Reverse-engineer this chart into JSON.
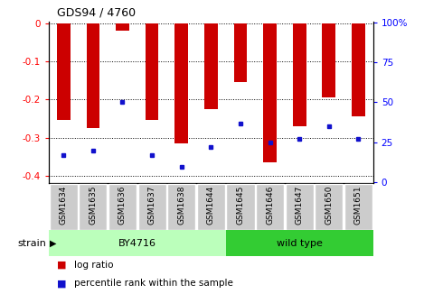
{
  "title": "GDS94 / 4760",
  "categories": [
    "GSM1634",
    "GSM1635",
    "GSM1636",
    "GSM1637",
    "GSM1638",
    "GSM1644",
    "GSM1645",
    "GSM1646",
    "GSM1647",
    "GSM1650",
    "GSM1651"
  ],
  "log_ratios": [
    -0.255,
    -0.275,
    -0.02,
    -0.255,
    -0.315,
    -0.225,
    -0.155,
    -0.365,
    -0.27,
    -0.195,
    -0.245
  ],
  "percentiles": [
    17,
    20,
    50,
    17,
    10,
    22,
    37,
    25,
    27,
    35,
    27
  ],
  "bar_color": "#cc0000",
  "dot_color": "#1111cc",
  "ylim_left": [
    -0.42,
    0.005
  ],
  "ylim_right": [
    -0.5,
    100.6
  ],
  "yticks_left": [
    0,
    -0.1,
    -0.2,
    -0.3,
    -0.4
  ],
  "ytick_labels_left": [
    "0",
    "-0.1",
    "-0.2",
    "-0.3",
    "-0.4"
  ],
  "yticks_right": [
    0,
    25,
    50,
    75,
    100
  ],
  "ytick_labels_right": [
    "0",
    "25",
    "50",
    "75",
    "100%"
  ],
  "strains": [
    {
      "label": "BY4716",
      "start": 0,
      "end": 5,
      "color": "#bbffbb"
    },
    {
      "label": "wild type",
      "start": 6,
      "end": 10,
      "color": "#33cc33"
    }
  ],
  "strain_label": "strain",
  "legend_items": [
    {
      "label": "log ratio",
      "color": "#cc0000"
    },
    {
      "label": "percentile rank within the sample",
      "color": "#1111cc"
    }
  ],
  "bar_width": 0.45,
  "tick_area_color": "#cccccc"
}
